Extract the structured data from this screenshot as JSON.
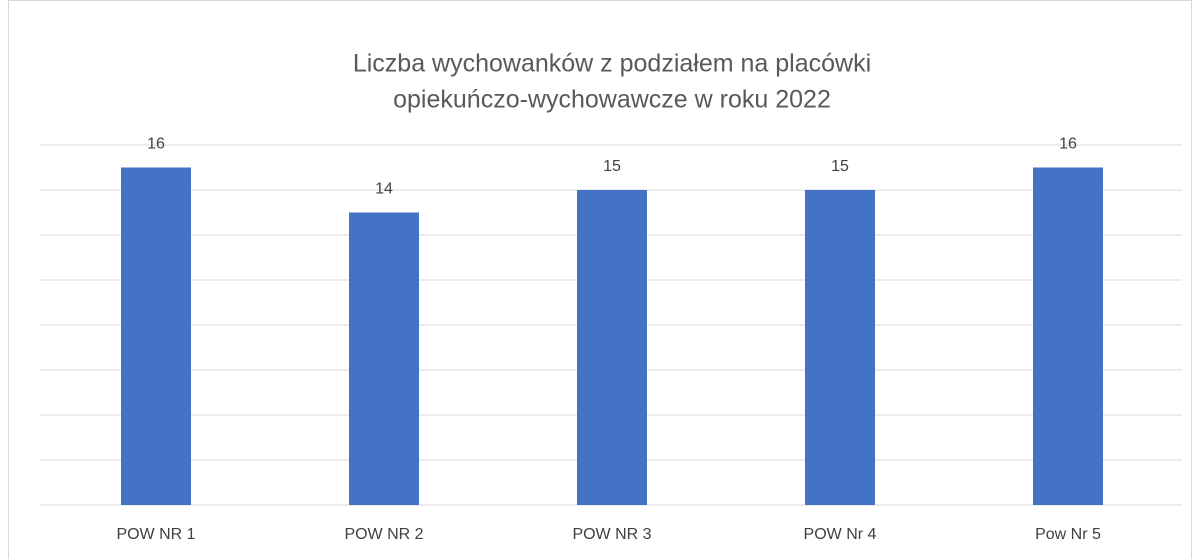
{
  "chart_data": {
    "type": "bar",
    "title": [
      "Liczba wychowanków z podziałem na placówki",
      "opiekuńczo-wychowawcze w roku 2022"
    ],
    "categories": [
      "POW NR 1",
      "POW NR 2",
      "POW NR 3",
      "POW Nr 4",
      "Pow Nr 5"
    ],
    "values": [
      16,
      14,
      15,
      15,
      16
    ],
    "color": "#4472c4",
    "ylim": [
      1,
      17
    ],
    "yticks": [
      1,
      3,
      5,
      7,
      9,
      11,
      13,
      15,
      17
    ],
    "grid": true
  }
}
